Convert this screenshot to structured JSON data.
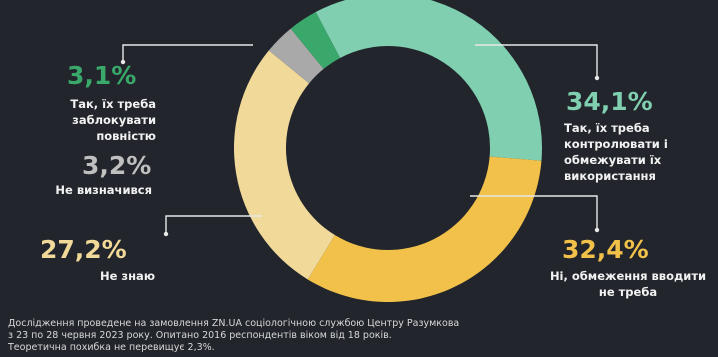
{
  "colors": {
    "background": "#22252b",
    "control": "#7fcfb0",
    "restrict": "#f2c14a",
    "dont_know": "#f1d99a",
    "undecided": "#a9a9a9",
    "block": "#3aa86b",
    "grey_text": "#bfbfbf"
  },
  "chart_data": {
    "type": "pie",
    "title": "",
    "slices": [
      {
        "label": "Так, їх треба контролювати і обмежувати їх використання",
        "value": 34.1,
        "value_label": "34,1%",
        "color": "#7fcfb0"
      },
      {
        "label": "Ні, обмеження вводити не треба",
        "value": 32.4,
        "value_label": "32,4%",
        "color": "#f2c14a"
      },
      {
        "label": "Не знаю",
        "value": 27.2,
        "value_label": "27,2%",
        "color": "#f1d99a"
      },
      {
        "label": "Не визначився",
        "value": 3.2,
        "value_label": "3,2%",
        "color": "#a9a9a9"
      },
      {
        "label": "Так, їх треба заблокувати повністю",
        "value": 3.1,
        "value_label": "3,1%",
        "color": "#3aa86b"
      }
    ],
    "donut": true
  },
  "footnote": "Дослідження проведене на замовлення ZN.UA соціологічною службою Центру Разумкова\nз 23 по 28 червня 2023 року. Опитано 2016 респондентів віком від 18 років.\nТеоретична похибка не перевищує 2,3%."
}
